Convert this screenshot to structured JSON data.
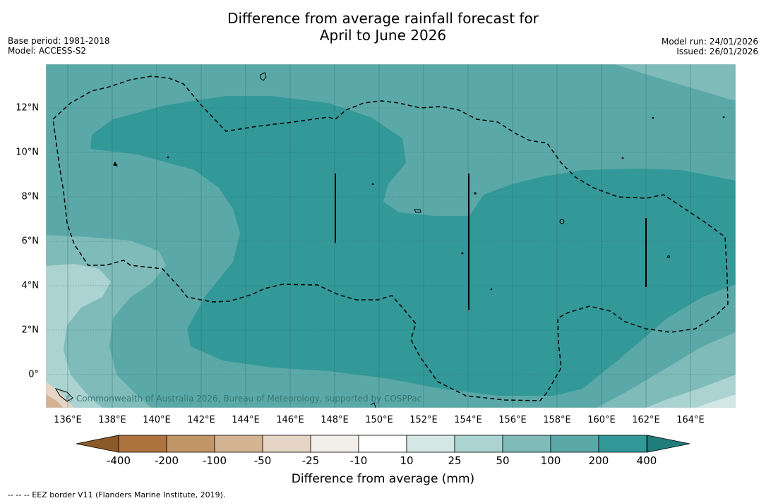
{
  "title": {
    "line1": "Difference from average rainfall forecast for",
    "line2": "April to June 2026"
  },
  "meta": {
    "base_period": "Base period: 1981-2018",
    "model": "Model: ACCESS-S2",
    "model_run": "Model run: 24/01/2026",
    "issued": "Issued: 26/01/2026"
  },
  "map": {
    "longitude_labels": [
      "136°E",
      "138°E",
      "140°E",
      "142°E",
      "144°E",
      "146°E",
      "148°E",
      "150°E",
      "152°E",
      "154°E",
      "156°E",
      "158°E",
      "160°E",
      "162°E",
      "164°E"
    ],
    "latitude_labels": [
      "12°N",
      "10°N",
      "8°N",
      "6°N",
      "4°N",
      "2°N",
      "0°"
    ],
    "copyright": "© Commonwealth of Australia 2026, Bureau of Meteorology, supported by COSPPac"
  },
  "colorbar": {
    "labels": [
      "-400",
      "-200",
      "-100",
      "-50",
      "-25",
      "-10",
      "10",
      "25",
      "50",
      "100",
      "200",
      "400"
    ],
    "colors": {
      "below_min": "#8c5a28",
      "bins": [
        "#ad7440",
        "#c29567",
        "#d4b392",
        "#e6d4c4",
        "#f2efeb",
        "#ffffff",
        "#d3e7e5",
        "#abd3d2",
        "#7fbbb9",
        "#5aa9a8",
        "#339998"
      ],
      "above_max": "#1f7d7b"
    },
    "title": "Difference from average (mm)"
  },
  "footnote": "--  --  -- EEZ border V11 (Flanders Marine Institute, 2019)."
}
